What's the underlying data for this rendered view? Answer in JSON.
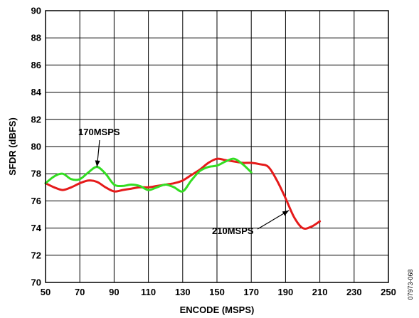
{
  "chart_data": {
    "type": "line",
    "title": "",
    "xlabel": "ENCODE (MSPS)",
    "ylabel": "SFDR (dBFS)",
    "xlim": [
      50,
      250
    ],
    "ylim": [
      70,
      90
    ],
    "x_ticks": [
      50,
      70,
      90,
      110,
      130,
      150,
      170,
      190,
      210,
      230,
      250
    ],
    "y_ticks": [
      70,
      72,
      74,
      76,
      78,
      80,
      82,
      84,
      86,
      88,
      90
    ],
    "grid": true,
    "legend": "none",
    "series": [
      {
        "name": "170MSPS",
        "color": "#33dd22",
        "x": [
          50,
          55,
          60,
          65,
          70,
          75,
          80,
          85,
          90,
          95,
          100,
          105,
          110,
          115,
          120,
          125,
          130,
          135,
          140,
          145,
          150,
          155,
          160,
          165,
          170
        ],
        "y": [
          77.3,
          77.8,
          78.0,
          77.6,
          77.6,
          78.1,
          78.5,
          78.0,
          77.2,
          77.1,
          77.2,
          77.1,
          76.8,
          77.0,
          77.2,
          77.0,
          76.7,
          77.5,
          78.2,
          78.5,
          78.6,
          78.9,
          79.1,
          78.7,
          78.1
        ]
      },
      {
        "name": "210MSPS",
        "color": "#e51a1a",
        "x": [
          50,
          55,
          60,
          65,
          70,
          75,
          80,
          85,
          90,
          95,
          100,
          105,
          110,
          115,
          120,
          125,
          130,
          135,
          140,
          145,
          150,
          155,
          160,
          165,
          170,
          175,
          180,
          185,
          190,
          195,
          200,
          205,
          210
        ],
        "y": [
          77.3,
          77.0,
          76.8,
          77.0,
          77.3,
          77.5,
          77.4,
          77.0,
          76.7,
          76.8,
          76.9,
          77.0,
          77.0,
          77.1,
          77.2,
          77.3,
          77.5,
          77.9,
          78.3,
          78.8,
          79.1,
          79.0,
          78.9,
          78.8,
          78.8,
          78.7,
          78.5,
          77.5,
          76.2,
          74.8,
          74.0,
          74.1,
          74.5
        ]
      }
    ],
    "annotations": [
      {
        "text": "170MSPS",
        "series": "170MSPS",
        "points_to": [
          80,
          78.5
        ]
      },
      {
        "text": "210MSPS",
        "series": "210MSPS",
        "points_to": [
          192,
          75.3
        ]
      }
    ],
    "figure_id": "07973-068"
  }
}
